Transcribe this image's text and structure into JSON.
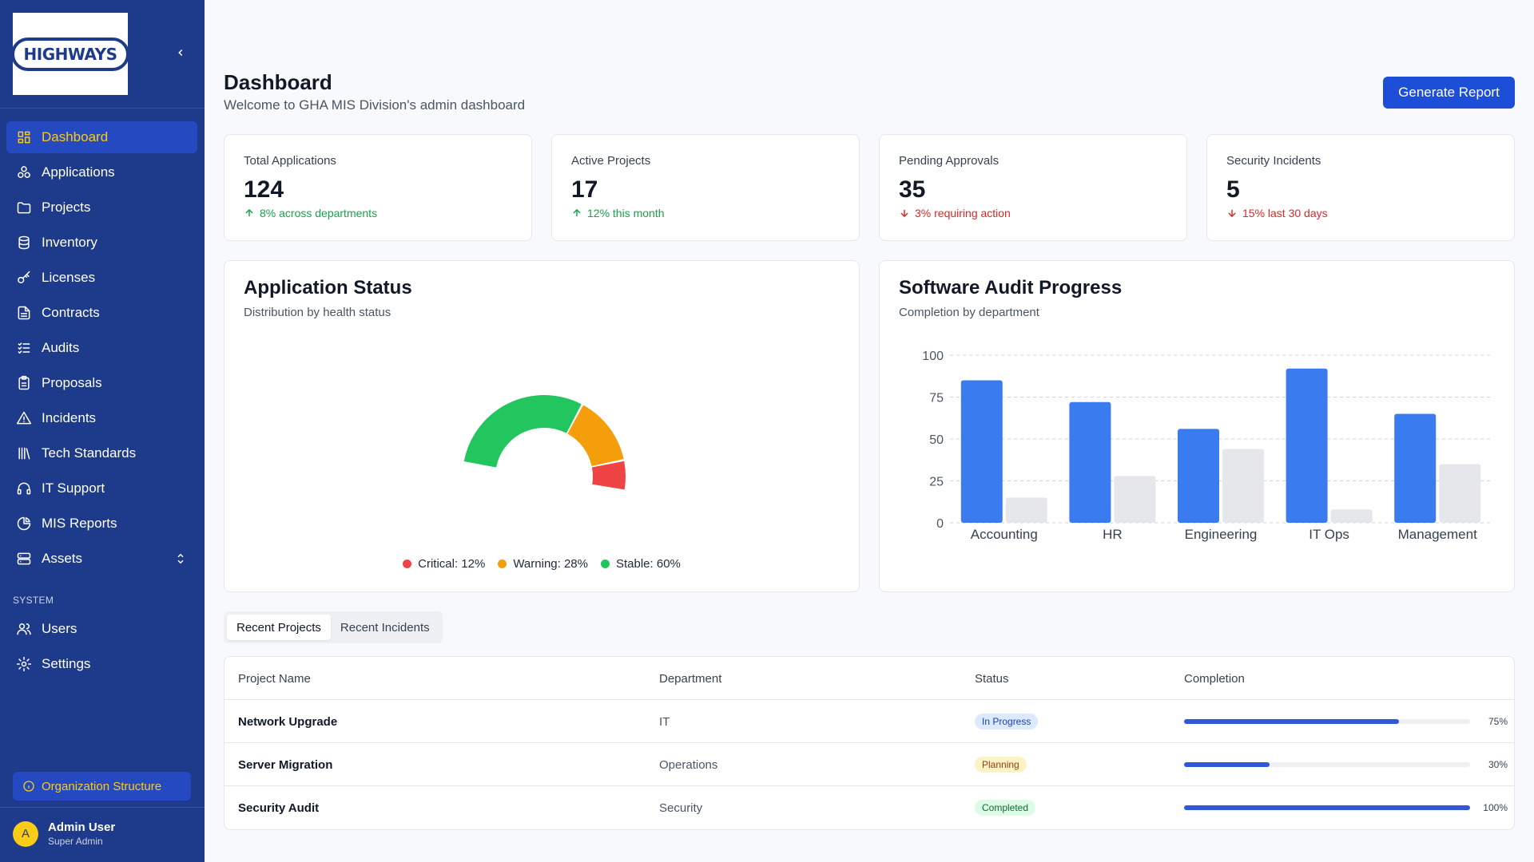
{
  "sidebar": {
    "logo_text": "HIGHWAYS",
    "nav_items": [
      {
        "label": "Dashboard",
        "icon": "dashboard-grid-icon",
        "active": true
      },
      {
        "label": "Applications",
        "icon": "applications-icon"
      },
      {
        "label": "Projects",
        "icon": "folder-icon"
      },
      {
        "label": "Inventory",
        "icon": "database-icon"
      },
      {
        "label": "Licenses",
        "icon": "key-icon"
      },
      {
        "label": "Contracts",
        "icon": "document-icon"
      },
      {
        "label": "Audits",
        "icon": "checklist-icon"
      },
      {
        "label": "Proposals",
        "icon": "clipboard-icon"
      },
      {
        "label": "Incidents",
        "icon": "warning-triangle-icon"
      },
      {
        "label": "Tech Standards",
        "icon": "library-icon"
      },
      {
        "label": "IT Support",
        "icon": "headset-icon"
      },
      {
        "label": "MIS Reports",
        "icon": "pie-chart-icon"
      },
      {
        "label": "Assets",
        "icon": "server-icon",
        "expandable": true
      }
    ],
    "system_label": "SYSTEM",
    "system_items": [
      {
        "label": "Users",
        "icon": "users-icon"
      },
      {
        "label": "Settings",
        "icon": "gear-icon"
      }
    ],
    "org_button": "Organization Structure",
    "user": {
      "initial": "A",
      "name": "Admin User",
      "role": "Super Admin"
    }
  },
  "header": {
    "title": "Dashboard",
    "subtitle": "Welcome to GHA MIS Division's admin dashboard",
    "button": "Generate Report"
  },
  "stats": [
    {
      "label": "Total Applications",
      "value": "124",
      "trend": "8% across departments",
      "direction": "up"
    },
    {
      "label": "Active Projects",
      "value": "17",
      "trend": "12% this month",
      "direction": "up"
    },
    {
      "label": "Pending Approvals",
      "value": "35",
      "trend": "3% requiring action",
      "direction": "down"
    },
    {
      "label": "Security Incidents",
      "value": "5",
      "trend": "15% last 30 days",
      "direction": "down"
    }
  ],
  "app_status": {
    "title": "Application Status",
    "subtitle": "Distribution by health status",
    "legend": [
      "Critical: 12%",
      "Warning: 28%",
      "Stable: 60%"
    ]
  },
  "audit": {
    "title": "Software Audit Progress",
    "subtitle": "Completion by department"
  },
  "tabs": [
    "Recent Projects",
    "Recent Incidents"
  ],
  "table": {
    "headers": [
      "Project Name",
      "Department",
      "Status",
      "Completion"
    ],
    "rows": [
      {
        "name": "Network Upgrade",
        "department": "IT",
        "status": "In Progress",
        "completion": 0.75,
        "completion_label": "75%"
      },
      {
        "name": "Server Migration",
        "department": "Operations",
        "status": "Planning",
        "completion": 0.3,
        "completion_label": "30%"
      },
      {
        "name": "Security Audit",
        "department": "Security",
        "status": "Completed",
        "completion": 1.0,
        "completion_label": "100%"
      }
    ]
  },
  "colors": {
    "sidebar_bg": "#1e3a8a",
    "accent_yellow": "#facc15",
    "primary_blue": "#1d4ed8",
    "critical": "#ef4444",
    "warning": "#f59e0b",
    "stable": "#22c55e",
    "bar_primary": "#3b7bf0",
    "bar_secondary": "#e5e7eb"
  },
  "chart_data": [
    {
      "type": "pie",
      "variant": "semi-donut",
      "slices": [
        {
          "label": "Critical",
          "value": 12,
          "color": "#ef4444"
        },
        {
          "label": "Warning",
          "value": 28,
          "color": "#f59e0b"
        },
        {
          "label": "Stable",
          "value": 60,
          "color": "#22c55e"
        }
      ]
    },
    {
      "type": "bar",
      "categories": [
        "Accounting",
        "HR",
        "Engineering",
        "IT Ops",
        "Management"
      ],
      "series": [
        {
          "values": [
            85,
            72,
            56,
            92,
            65
          ],
          "color": "#3b7bf0"
        },
        {
          "values": [
            15,
            28,
            44,
            8,
            35
          ],
          "color": "#e5e7eb"
        }
      ],
      "ylim": [
        0,
        100
      ],
      "yticks": [
        0,
        25,
        50,
        75,
        100
      ],
      "grid": true
    }
  ]
}
